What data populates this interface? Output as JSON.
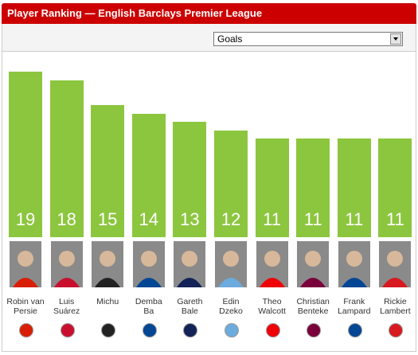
{
  "header": {
    "title": "Player Ranking — English Barclays Premier League"
  },
  "dropdown": {
    "selected": "Goals"
  },
  "chart_data": {
    "type": "bar",
    "categories": [
      "Robin van\nPersie",
      "Luis\nSuárez",
      "Michu",
      "Demba\nBa",
      "Gareth\nBale",
      "Edin\nDzeko",
      "Theo\nWalcott",
      "Christian\nBenteke",
      "Frank\nLampard",
      "Rickie\nLambert"
    ],
    "values": [
      19,
      18,
      15,
      14,
      13,
      12,
      11,
      11,
      11,
      11
    ],
    "color": "#8cc63f"
  }
}
